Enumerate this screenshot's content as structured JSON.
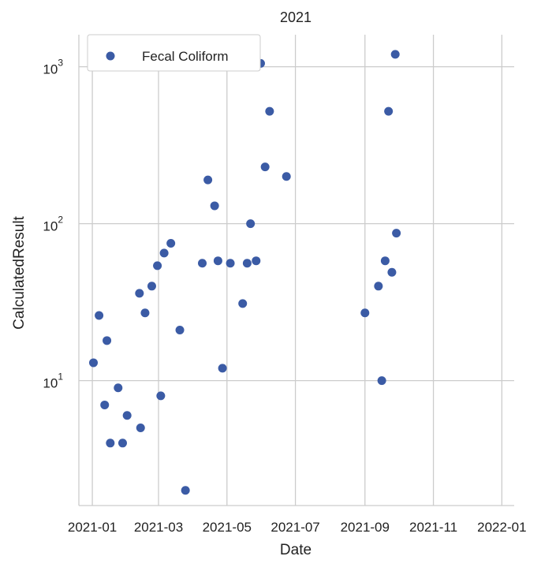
{
  "chart_data": {
    "type": "scatter",
    "title": "2021",
    "xlabel": "Date",
    "ylabel": "CalculatedResult",
    "yscale": "log",
    "ylim": [
      1.6,
      1600
    ],
    "xlim": [
      "2020-12-20",
      "2022-01-12"
    ],
    "grid": true,
    "legend_position": "top-left",
    "x_ticks": [
      "2021-01",
      "2021-03",
      "2021-05",
      "2021-07",
      "2021-09",
      "2021-11",
      "2022-01"
    ],
    "y_ticks": [
      {
        "base": "10",
        "exp": "1",
        "value": 10
      },
      {
        "base": "10",
        "exp": "2",
        "value": 100
      },
      {
        "base": "10",
        "exp": "3",
        "value": 1000
      }
    ],
    "series": [
      {
        "name": "Fecal Coliform",
        "color": "#3B5BA5",
        "points": [
          {
            "x": "2021-01-02",
            "y": 13
          },
          {
            "x": "2021-01-07",
            "y": 26
          },
          {
            "x": "2021-01-12",
            "y": 7
          },
          {
            "x": "2021-01-14",
            "y": 18
          },
          {
            "x": "2021-01-17",
            "y": 4
          },
          {
            "x": "2021-01-24",
            "y": 9
          },
          {
            "x": "2021-01-28",
            "y": 4
          },
          {
            "x": "2021-02-01",
            "y": 6
          },
          {
            "x": "2021-02-12",
            "y": 36
          },
          {
            "x": "2021-02-13",
            "y": 5
          },
          {
            "x": "2021-02-17",
            "y": 27
          },
          {
            "x": "2021-02-23",
            "y": 40
          },
          {
            "x": "2021-02-28",
            "y": 54
          },
          {
            "x": "2021-03-03",
            "y": 8
          },
          {
            "x": "2021-03-06",
            "y": 65
          },
          {
            "x": "2021-03-12",
            "y": 75
          },
          {
            "x": "2021-03-20",
            "y": 21
          },
          {
            "x": "2021-03-25",
            "y": 2
          },
          {
            "x": "2021-04-09",
            "y": 56
          },
          {
            "x": "2021-04-14",
            "y": 190
          },
          {
            "x": "2021-04-20",
            "y": 130
          },
          {
            "x": "2021-04-23",
            "y": 58
          },
          {
            "x": "2021-04-27",
            "y": 12
          },
          {
            "x": "2021-05-04",
            "y": 56
          },
          {
            "x": "2021-05-15",
            "y": 31
          },
          {
            "x": "2021-05-19",
            "y": 56
          },
          {
            "x": "2021-05-22",
            "y": 100
          },
          {
            "x": "2021-05-27",
            "y": 58
          },
          {
            "x": "2021-05-31",
            "y": 1050
          },
          {
            "x": "2021-06-04",
            "y": 230
          },
          {
            "x": "2021-06-08",
            "y": 520
          },
          {
            "x": "2021-06-23",
            "y": 200
          },
          {
            "x": "2021-09-01",
            "y": 27
          },
          {
            "x": "2021-09-13",
            "y": 40
          },
          {
            "x": "2021-09-16",
            "y": 10
          },
          {
            "x": "2021-09-19",
            "y": 58
          },
          {
            "x": "2021-09-22",
            "y": 520
          },
          {
            "x": "2021-09-25",
            "y": 49
          },
          {
            "x": "2021-09-28",
            "y": 1200
          },
          {
            "x": "2021-09-29",
            "y": 87
          }
        ]
      }
    ]
  }
}
